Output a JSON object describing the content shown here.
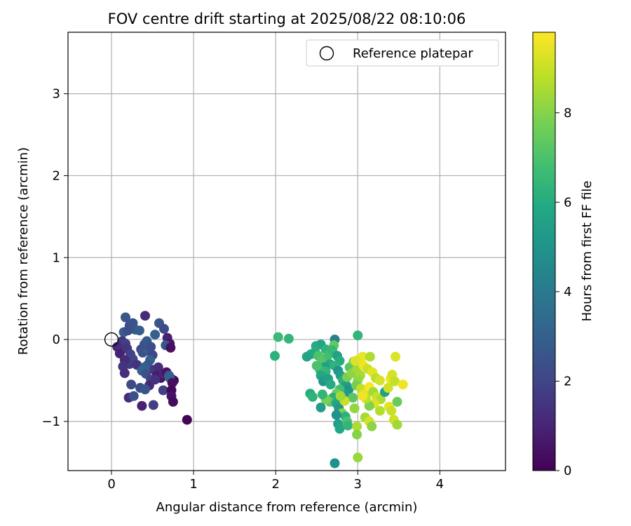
{
  "chart_data": {
    "type": "scatter",
    "title": "FOV centre drift starting at 2025/08/22 08:10:06",
    "xlabel": "Angular distance from reference (arcmin)",
    "ylabel": "Rotation from reference (arcmin)",
    "xlim": [
      -0.53,
      4.8
    ],
    "ylim": [
      -1.6,
      3.75
    ],
    "xticks": [
      0,
      1,
      2,
      3,
      4
    ],
    "yticks": [
      -1,
      0,
      1,
      2,
      3
    ],
    "xtick_labels": [
      "0",
      "1",
      "2",
      "3",
      "4"
    ],
    "ytick_labels": [
      "−1",
      "0",
      "1",
      "2",
      "3"
    ],
    "grid": true,
    "legend": {
      "label": "Reference platepar",
      "placement": "top-right",
      "marker": "open-circle"
    },
    "reference_point": {
      "x": 0,
      "y": 0
    },
    "colorbar": {
      "label": "Hours from first FF file",
      "colormap": "viridis",
      "range": [
        0,
        9.8
      ],
      "ticks": [
        0,
        2,
        4,
        6,
        8
      ],
      "tick_labels": [
        "0",
        "2",
        "4",
        "6",
        "8"
      ]
    },
    "points": [
      {
        "x": 0.17,
        "y": 0.27,
        "t": 2.6
      },
      {
        "x": 0.22,
        "y": 0.17,
        "t": 2.4
      },
      {
        "x": 0.26,
        "y": 0.2,
        "t": 2.5
      },
      {
        "x": 0.29,
        "y": 0.12,
        "t": 2.7
      },
      {
        "x": 0.34,
        "y": 0.11,
        "t": 2.9
      },
      {
        "x": 0.41,
        "y": 0.29,
        "t": 1.2
      },
      {
        "x": 0.15,
        "y": 0.09,
        "t": 2.8
      },
      {
        "x": 0.2,
        "y": 0.11,
        "t": 2.3
      },
      {
        "x": 0.58,
        "y": 0.2,
        "t": 2.6
      },
      {
        "x": 0.64,
        "y": 0.13,
        "t": 2.2
      },
      {
        "x": 0.53,
        "y": 0.06,
        "t": 3.0
      },
      {
        "x": 0.68,
        "y": 0.02,
        "t": 0.9
      },
      {
        "x": 0.71,
        "y": -0.05,
        "t": 0.6
      },
      {
        "x": 0.66,
        "y": -0.07,
        "t": 2.6
      },
      {
        "x": 0.72,
        "y": -0.1,
        "t": 0.4
      },
      {
        "x": 0.13,
        "y": -0.02,
        "t": 1.6
      },
      {
        "x": 0.17,
        "y": -0.05,
        "t": 1.8
      },
      {
        "x": 0.07,
        "y": -0.09,
        "t": 1.1
      },
      {
        "x": 0.12,
        "y": -0.13,
        "t": 1.4
      },
      {
        "x": 0.1,
        "y": -0.17,
        "t": 0.9
      },
      {
        "x": 0.19,
        "y": -0.11,
        "t": 1.5
      },
      {
        "x": 0.23,
        "y": -0.18,
        "t": 1.9
      },
      {
        "x": 0.26,
        "y": -0.24,
        "t": 2.0
      },
      {
        "x": 0.22,
        "y": -0.3,
        "t": 1.7
      },
      {
        "x": 0.16,
        "y": -0.25,
        "t": 1.2
      },
      {
        "x": 0.31,
        "y": -0.31,
        "t": 1.4
      },
      {
        "x": 0.36,
        "y": -0.12,
        "t": 2.2
      },
      {
        "x": 0.4,
        "y": -0.06,
        "t": 2.4
      },
      {
        "x": 0.43,
        "y": -0.02,
        "t": 2.7
      },
      {
        "x": 0.38,
        "y": -0.16,
        "t": 2.5
      },
      {
        "x": 0.45,
        "y": -0.14,
        "t": 2.8
      },
      {
        "x": 0.48,
        "y": -0.09,
        "t": 2.3
      },
      {
        "x": 0.5,
        "y": -0.19,
        "t": 2.1
      },
      {
        "x": 0.47,
        "y": -0.25,
        "t": 3.0
      },
      {
        "x": 0.44,
        "y": -0.31,
        "t": 2.6
      },
      {
        "x": 0.4,
        "y": -0.34,
        "t": 2.9
      },
      {
        "x": 0.37,
        "y": -0.38,
        "t": 3.1
      },
      {
        "x": 0.42,
        "y": -0.42,
        "t": 2.4
      },
      {
        "x": 0.52,
        "y": -0.37,
        "t": 1.6
      },
      {
        "x": 0.57,
        "y": -0.34,
        "t": 1.3
      },
      {
        "x": 0.55,
        "y": -0.44,
        "t": 0.8
      },
      {
        "x": 0.6,
        "y": -0.47,
        "t": 0.6
      },
      {
        "x": 0.63,
        "y": -0.42,
        "t": 1.0
      },
      {
        "x": 0.67,
        "y": -0.4,
        "t": 0.5
      },
      {
        "x": 0.7,
        "y": -0.44,
        "t": 2.8
      },
      {
        "x": 0.73,
        "y": -0.48,
        "t": 0.3
      },
      {
        "x": 0.76,
        "y": -0.5,
        "t": 0.2
      },
      {
        "x": 0.71,
        "y": -0.47,
        "t": 3.1
      },
      {
        "x": 0.74,
        "y": -0.53,
        "t": 0.4
      },
      {
        "x": 0.14,
        "y": -0.33,
        "t": 1.5
      },
      {
        "x": 0.16,
        "y": -0.41,
        "t": 1.3
      },
      {
        "x": 0.24,
        "y": -0.55,
        "t": 2.2
      },
      {
        "x": 0.35,
        "y": -0.59,
        "t": 2.3
      },
      {
        "x": 0.48,
        "y": -0.49,
        "t": 1.9
      },
      {
        "x": 0.46,
        "y": -0.56,
        "t": 1.1
      },
      {
        "x": 0.41,
        "y": -0.61,
        "t": 2.6
      },
      {
        "x": 0.53,
        "y": -0.49,
        "t": 1.4
      },
      {
        "x": 0.63,
        "y": -0.62,
        "t": 1.8
      },
      {
        "x": 0.73,
        "y": -0.62,
        "t": 0.2
      },
      {
        "x": 0.73,
        "y": -0.69,
        "t": 0.5
      },
      {
        "x": 0.21,
        "y": -0.71,
        "t": 1.3
      },
      {
        "x": 0.27,
        "y": -0.69,
        "t": 2.4
      },
      {
        "x": 0.37,
        "y": -0.81,
        "t": 0.9
      },
      {
        "x": 0.51,
        "y": -0.8,
        "t": 1.8
      },
      {
        "x": 0.75,
        "y": -0.76,
        "t": 0.3
      },
      {
        "x": 0.92,
        "y": -0.98,
        "t": 0.1
      },
      {
        "x": 2.03,
        "y": 0.03,
        "t": 6.6
      },
      {
        "x": 2.16,
        "y": 0.01,
        "t": 6.4
      },
      {
        "x": 1.99,
        "y": -0.2,
        "t": 6.2
      },
      {
        "x": 2.49,
        "y": -0.08,
        "t": 6.0
      },
      {
        "x": 2.55,
        "y": -0.06,
        "t": 5.8
      },
      {
        "x": 2.61,
        "y": -0.12,
        "t": 6.3
      },
      {
        "x": 2.48,
        "y": -0.15,
        "t": 6.1
      },
      {
        "x": 2.43,
        "y": -0.18,
        "t": 5.9
      },
      {
        "x": 2.38,
        "y": -0.21,
        "t": 5.7
      },
      {
        "x": 2.52,
        "y": -0.2,
        "t": 7.0
      },
      {
        "x": 2.57,
        "y": -0.25,
        "t": 7.2
      },
      {
        "x": 2.64,
        "y": -0.19,
        "t": 6.8
      },
      {
        "x": 2.72,
        "y": 0.0,
        "t": 4.3
      },
      {
        "x": 2.71,
        "y": -0.07,
        "t": 7.4
      },
      {
        "x": 2.69,
        "y": -0.13,
        "t": 6.5
      },
      {
        "x": 2.75,
        "y": -0.2,
        "t": 5.6
      },
      {
        "x": 2.78,
        "y": -0.26,
        "t": 6.0
      },
      {
        "x": 2.66,
        "y": -0.3,
        "t": 5.9
      },
      {
        "x": 2.59,
        "y": -0.34,
        "t": 5.4
      },
      {
        "x": 2.61,
        "y": -0.39,
        "t": 6.4
      },
      {
        "x": 2.54,
        "y": -0.37,
        "t": 6.6
      },
      {
        "x": 2.5,
        "y": -0.32,
        "t": 7.0
      },
      {
        "x": 2.55,
        "y": -0.44,
        "t": 5.8
      },
      {
        "x": 2.58,
        "y": -0.51,
        "t": 5.2
      },
      {
        "x": 2.64,
        "y": -0.48,
        "t": 5.6
      },
      {
        "x": 2.67,
        "y": -0.55,
        "t": 6.0
      },
      {
        "x": 2.72,
        "y": -0.32,
        "t": 6.3
      },
      {
        "x": 2.76,
        "y": -0.38,
        "t": 5.1
      },
      {
        "x": 2.79,
        "y": -0.44,
        "t": 5.5
      },
      {
        "x": 2.82,
        "y": -0.5,
        "t": 6.2
      },
      {
        "x": 2.86,
        "y": -0.56,
        "t": 5.4
      },
      {
        "x": 2.89,
        "y": -0.61,
        "t": 5.0
      },
      {
        "x": 2.84,
        "y": -0.66,
        "t": 5.3
      },
      {
        "x": 2.78,
        "y": -0.61,
        "t": 6.8
      },
      {
        "x": 2.74,
        "y": -0.66,
        "t": 7.6
      },
      {
        "x": 2.7,
        "y": -0.71,
        "t": 6.1
      },
      {
        "x": 2.66,
        "y": -0.76,
        "t": 7.3
      },
      {
        "x": 2.61,
        "y": -0.73,
        "t": 7.8
      },
      {
        "x": 2.57,
        "y": -0.67,
        "t": 6.4
      },
      {
        "x": 2.42,
        "y": -0.66,
        "t": 6.0
      },
      {
        "x": 2.45,
        "y": -0.7,
        "t": 6.3
      },
      {
        "x": 2.55,
        "y": -0.83,
        "t": 5.4
      },
      {
        "x": 2.74,
        "y": -0.78,
        "t": 5.7
      },
      {
        "x": 2.77,
        "y": -0.84,
        "t": 5.2
      },
      {
        "x": 2.81,
        "y": -0.9,
        "t": 7.9
      },
      {
        "x": 2.85,
        "y": -0.94,
        "t": 6.2
      },
      {
        "x": 2.74,
        "y": -0.92,
        "t": 5.0
      },
      {
        "x": 2.76,
        "y": -1.03,
        "t": 5.5
      },
      {
        "x": 2.78,
        "y": -1.09,
        "t": 5.8
      },
      {
        "x": 2.87,
        "y": -1.0,
        "t": 7.0
      },
      {
        "x": 2.88,
        "y": -1.05,
        "t": 6.4
      },
      {
        "x": 2.72,
        "y": -1.51,
        "t": 4.9
      },
      {
        "x": 2.9,
        "y": -0.34,
        "t": 7.2
      },
      {
        "x": 2.95,
        "y": -0.27,
        "t": 7.6
      },
      {
        "x": 2.87,
        "y": -0.46,
        "t": 7.8
      },
      {
        "x": 2.93,
        "y": -0.41,
        "t": 8.1
      },
      {
        "x": 2.99,
        "y": -0.36,
        "t": 8.4
      },
      {
        "x": 3.0,
        "y": 0.05,
        "t": 6.4
      },
      {
        "x": 3.02,
        "y": -0.24,
        "t": 9.1
      },
      {
        "x": 3.06,
        "y": -0.21,
        "t": 9.5
      },
      {
        "x": 3.15,
        "y": -0.21,
        "t": 8.6
      },
      {
        "x": 2.97,
        "y": -0.26,
        "t": 9.3
      },
      {
        "x": 3.07,
        "y": -0.32,
        "t": 9.6
      },
      {
        "x": 3.12,
        "y": -0.36,
        "t": 9.0
      },
      {
        "x": 3.18,
        "y": -0.4,
        "t": 9.4
      },
      {
        "x": 3.22,
        "y": -0.47,
        "t": 8.8
      },
      {
        "x": 3.27,
        "y": -0.5,
        "t": 9.2
      },
      {
        "x": 3.03,
        "y": -0.44,
        "t": 8.5
      },
      {
        "x": 3.0,
        "y": -0.5,
        "t": 8.2
      },
      {
        "x": 2.98,
        "y": -0.56,
        "t": 7.7
      },
      {
        "x": 3.04,
        "y": -0.6,
        "t": 8.9
      },
      {
        "x": 3.09,
        "y": -0.66,
        "t": 9.3
      },
      {
        "x": 3.14,
        "y": -0.58,
        "t": 9.7
      },
      {
        "x": 3.19,
        "y": -0.64,
        "t": 8.4
      },
      {
        "x": 3.23,
        "y": -0.7,
        "t": 9.0
      },
      {
        "x": 3.28,
        "y": -0.73,
        "t": 8.6
      },
      {
        "x": 3.33,
        "y": -0.64,
        "t": 5.5
      },
      {
        "x": 3.37,
        "y": -0.59,
        "t": 9.1
      },
      {
        "x": 3.4,
        "y": -0.48,
        "t": 9.5
      },
      {
        "x": 3.42,
        "y": -0.43,
        "t": 9.2
      },
      {
        "x": 3.45,
        "y": -0.51,
        "t": 8.9
      },
      {
        "x": 3.46,
        "y": -0.21,
        "t": 9.3
      },
      {
        "x": 3.55,
        "y": -0.55,
        "t": 9.6
      },
      {
        "x": 3.48,
        "y": -0.76,
        "t": 7.5
      },
      {
        "x": 3.38,
        "y": -0.82,
        "t": 9.4
      },
      {
        "x": 3.41,
        "y": -0.87,
        "t": 9.0
      },
      {
        "x": 3.44,
        "y": -0.98,
        "t": 9.1
      },
      {
        "x": 3.48,
        "y": -1.04,
        "t": 8.4
      },
      {
        "x": 3.27,
        "y": -0.87,
        "t": 8.7
      },
      {
        "x": 3.2,
        "y": -0.78,
        "t": 9.3
      },
      {
        "x": 3.14,
        "y": -0.81,
        "t": 7.9
      },
      {
        "x": 3.09,
        "y": -0.95,
        "t": 8.5
      },
      {
        "x": 3.14,
        "y": -1.0,
        "t": 9.2
      },
      {
        "x": 3.17,
        "y": -1.06,
        "t": 8.1
      },
      {
        "x": 2.99,
        "y": -1.06,
        "t": 8.6
      },
      {
        "x": 2.99,
        "y": -1.16,
        "t": 8.0
      },
      {
        "x": 3.0,
        "y": -1.44,
        "t": 8.3
      },
      {
        "x": 3.1,
        "y": -0.72,
        "t": 8.8
      },
      {
        "x": 3.06,
        "y": -0.69,
        "t": 9.6
      },
      {
        "x": 2.94,
        "y": -0.71,
        "t": 7.3
      },
      {
        "x": 2.96,
        "y": -0.84,
        "t": 8.2
      },
      {
        "x": 2.84,
        "y": -0.75,
        "t": 9.0
      },
      {
        "x": 2.79,
        "y": -0.69,
        "t": 8.4
      }
    ]
  }
}
